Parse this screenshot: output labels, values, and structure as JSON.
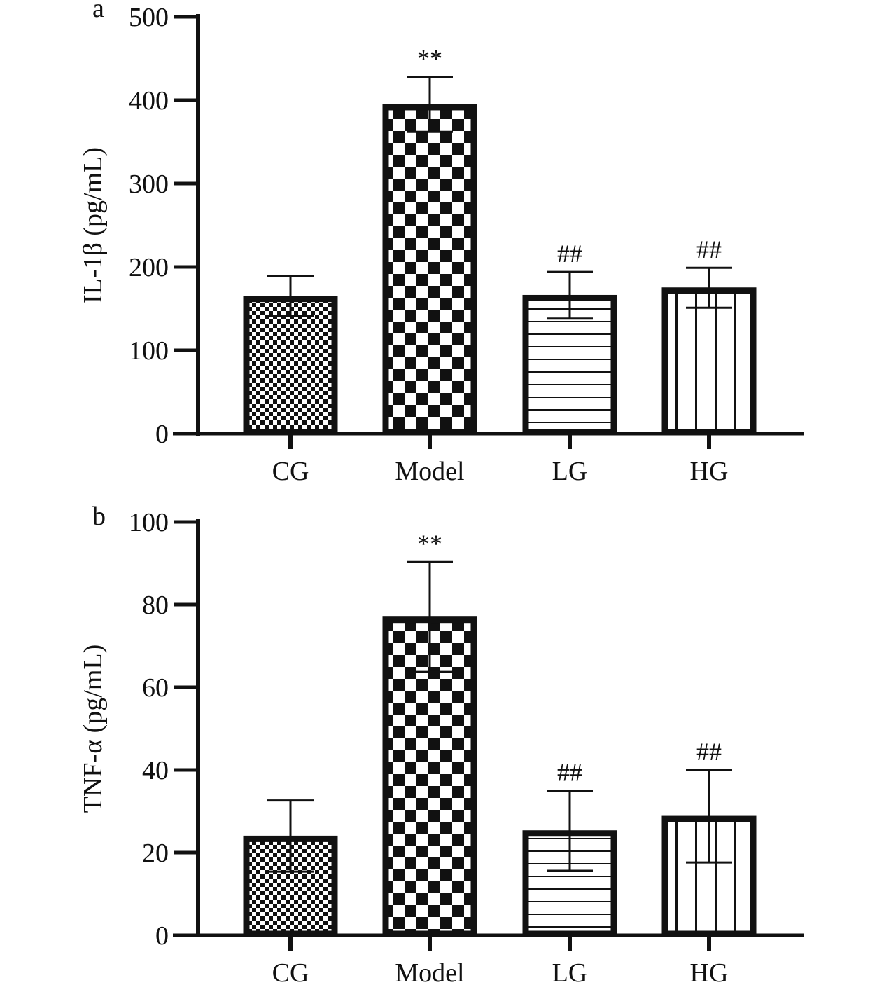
{
  "chart_data": [
    {
      "type": "bar",
      "panel_label": "a",
      "ylabel": "IL-1β (pg/mL)",
      "ylim": [
        0,
        500
      ],
      "yticks": [
        "0",
        "100",
        "200",
        "300",
        "400",
        "500"
      ],
      "categories": [
        "CG",
        "Model",
        "LG",
        "HG"
      ],
      "values": [
        165,
        395,
        166,
        175
      ],
      "error": [
        24,
        33,
        28,
        24
      ],
      "annotations": [
        "",
        "**",
        "##",
        "##"
      ],
      "patterns": [
        "fine-checker",
        "coarse-checker",
        "horizontal-lines",
        "vertical-lines"
      ]
    },
    {
      "type": "bar",
      "panel_label": "b",
      "ylabel": "TNF-α (pg/mL)",
      "ylim": [
        0,
        100
      ],
      "yticks": [
        "0",
        "20",
        "40",
        "60",
        "80",
        "100"
      ],
      "categories": [
        "CG",
        "Model",
        "LG",
        "HG"
      ],
      "values": [
        24,
        77,
        25.3,
        28.8
      ],
      "error": [
        8.6,
        13.3,
        9.7,
        11.2
      ],
      "annotations": [
        "",
        "**",
        "##",
        "##"
      ],
      "patterns": [
        "fine-checker",
        "coarse-checker",
        "horizontal-lines",
        "vertical-lines"
      ]
    }
  ]
}
